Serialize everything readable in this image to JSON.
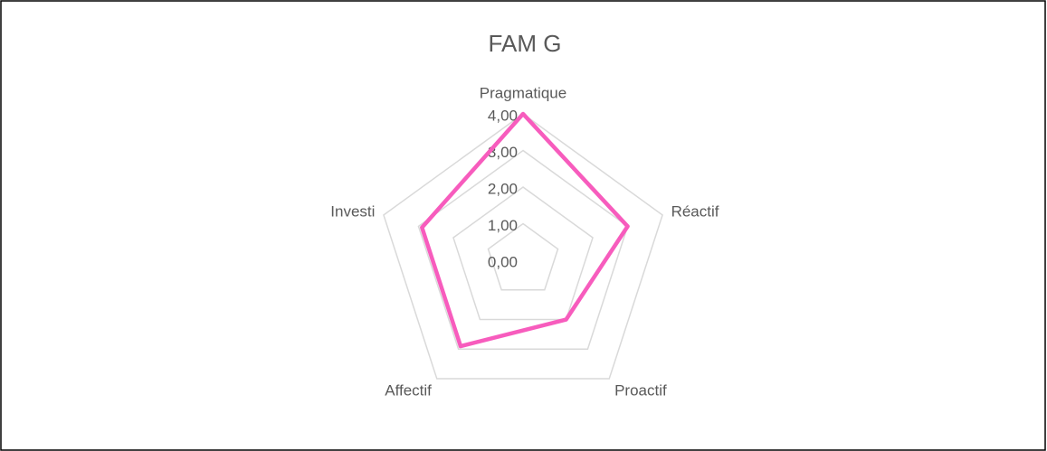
{
  "chart_data": {
    "type": "radar",
    "title": "FAM G",
    "categories": [
      "Pragmatique",
      "Réactif",
      "Proactif",
      "Affectif",
      "Investi"
    ],
    "series": [
      {
        "name": "FAM G",
        "color": "#f75cbd",
        "values": [
          4.0,
          3.0,
          2.0,
          2.9,
          2.9
        ]
      }
    ],
    "ylim": [
      0,
      4
    ],
    "yticks": [
      {
        "value": 0,
        "label": "0,00"
      },
      {
        "value": 1,
        "label": "1,00"
      },
      {
        "value": 2,
        "label": "2,00"
      },
      {
        "value": 3,
        "label": "3,00"
      },
      {
        "value": 4,
        "label": "4,00"
      }
    ],
    "grid": true
  }
}
